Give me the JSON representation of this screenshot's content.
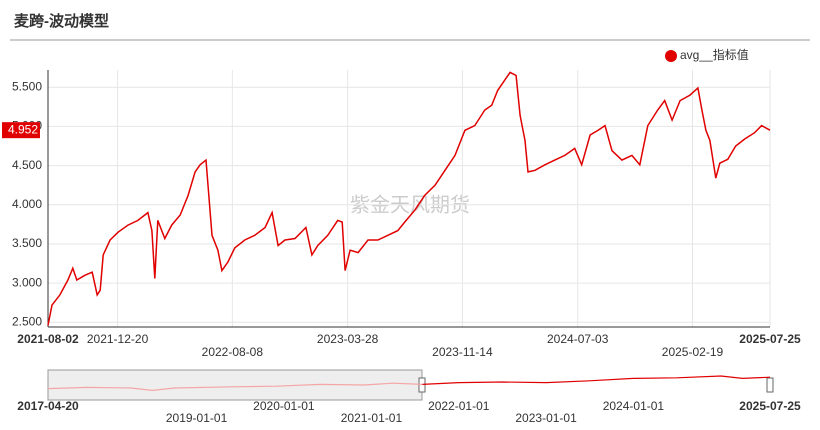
{
  "chart_data": [
    {
      "type": "line",
      "title": "麦跨-波动模型",
      "watermark": "紫金天风期货",
      "legend": "top-right",
      "grid": true,
      "x": [
        "2021-08-02",
        "2021-08-10",
        "2021-08-26",
        "2021-09-11",
        "2021-09-21",
        "2021-09-29",
        "2021-10-15",
        "2021-10-30",
        "2021-11-09",
        "2021-11-15",
        "2021-11-21",
        "2021-12-05",
        "2021-12-21",
        "2022-01-10",
        "2022-01-30",
        "2022-02-19",
        "2022-02-27",
        "2022-03-05",
        "2022-03-11",
        "2022-03-25",
        "2022-04-08",
        "2022-04-25",
        "2022-05-11",
        "2022-05-25",
        "2022-06-04",
        "2022-06-16",
        "2022-06-20",
        "2022-06-28",
        "2022-07-10",
        "2022-07-18",
        "2022-07-30",
        "2022-08-13",
        "2022-09-02",
        "2022-09-22",
        "2022-10-13",
        "2022-10-27",
        "2022-11-08",
        "2022-11-22",
        "2022-12-12",
        "2023-01-03",
        "2023-01-15",
        "2023-01-27",
        "2023-02-16",
        "2023-03-08",
        "2023-03-17",
        "2023-03-23",
        "2023-04-02",
        "2023-04-18",
        "2023-05-08",
        "2023-05-28",
        "2023-06-17",
        "2023-07-07",
        "2023-07-21",
        "2023-08-10",
        "2023-08-30",
        "2023-09-20",
        "2023-10-10",
        "2023-10-30",
        "2023-11-19",
        "2023-12-09",
        "2023-12-29",
        "2024-01-12",
        "2024-01-24",
        "2024-02-07",
        "2024-02-18",
        "2024-03-01",
        "2024-03-09",
        "2024-03-19",
        "2024-03-25",
        "2024-04-08",
        "2024-04-28",
        "2024-05-18",
        "2024-06-07",
        "2024-06-27",
        "2024-07-11",
        "2024-07-28",
        "2024-08-13",
        "2024-08-27",
        "2024-09-10",
        "2024-09-30",
        "2024-10-20",
        "2024-11-05",
        "2024-11-21",
        "2024-12-11",
        "2024-12-25",
        "2025-01-09",
        "2025-01-25",
        "2025-02-14",
        "2025-03-02",
        "2025-03-10",
        "2025-03-18",
        "2025-03-26",
        "2025-04-07",
        "2025-04-15",
        "2025-05-01",
        "2025-05-17",
        "2025-06-04",
        "2025-06-24",
        "2025-07-08",
        "2025-07-25"
      ],
      "series": [
        {
          "name": "avg__指标值",
          "color": "#e00000",
          "values": [
            2.46,
            2.72,
            2.85,
            3.04,
            3.19,
            3.04,
            3.1,
            3.14,
            2.85,
            2.91,
            3.36,
            3.55,
            3.65,
            3.74,
            3.8,
            3.9,
            3.67,
            3.06,
            3.8,
            3.57,
            3.74,
            3.87,
            4.12,
            4.42,
            4.51,
            4.57,
            4.25,
            3.61,
            3.42,
            3.16,
            3.27,
            3.45,
            3.55,
            3.61,
            3.71,
            3.9,
            3.48,
            3.55,
            3.57,
            3.71,
            3.36,
            3.48,
            3.61,
            3.8,
            3.78,
            3.16,
            3.42,
            3.39,
            3.55,
            3.55,
            3.61,
            3.67,
            3.78,
            3.93,
            4.12,
            4.25,
            4.44,
            4.63,
            4.95,
            5.01,
            5.21,
            5.27,
            5.46,
            5.59,
            5.69,
            5.65,
            5.14,
            4.82,
            4.42,
            4.44,
            4.51,
            4.57,
            4.63,
            4.72,
            4.51,
            4.89,
            4.95,
            5.01,
            4.69,
            4.57,
            4.63,
            4.51,
            5.01,
            5.21,
            5.33,
            5.08,
            5.33,
            5.4,
            5.49,
            5.21,
            4.95,
            4.82,
            4.34,
            4.53,
            4.58,
            4.75,
            4.84,
            4.92,
            5.01,
            4.952
          ]
        }
      ],
      "xlim": [
        "2021-08-02",
        "2025-07-25"
      ],
      "xticks": [
        "2021-08-02",
        "2021-12-20",
        "2022-08-08",
        "2023-03-28",
        "2023-11-14",
        "2024-07-03",
        "2025-02-19",
        "2025-07-25"
      ],
      "ylim": [
        2.44,
        5.72
      ],
      "yticks": [
        {
          "value": 2.5,
          "label": "2.500"
        },
        {
          "value": 3,
          "label": "3.000"
        },
        {
          "value": 3.5,
          "label": "3.500"
        },
        {
          "value": 4,
          "label": "4.000"
        },
        {
          "value": 4.5,
          "label": "4.500"
        },
        {
          "value": 5,
          "label": "5.000"
        },
        {
          "value": 5.5,
          "label": "5.500"
        }
      ]
    },
    {
      "type": "line",
      "series": [
        {
          "color": "#f4a6a6",
          "x": [
            "2017-04-20",
            "2017-10-01",
            "2018-04-01",
            "2018-07-01",
            "2018-10-01",
            "2019-06-01",
            "2019-12-01",
            "2020-06-01",
            "2020-12-01",
            "2021-04-01",
            "2021-08-02"
          ],
          "values": [
            2.9,
            3.1,
            3.0,
            2.6,
            3.0,
            3.2,
            3.3,
            3.6,
            3.5,
            3.8,
            3.6
          ]
        },
        {
          "color": "#e00000",
          "x": [
            "2021-08-02",
            "2022-01-01",
            "2022-07-01",
            "2023-01-01",
            "2023-07-01",
            "2024-01-01",
            "2024-07-01",
            "2025-01-01",
            "2025-04-01",
            "2025-07-25"
          ],
          "values": [
            3.6,
            3.9,
            4.0,
            3.9,
            4.2,
            4.6,
            4.7,
            5.0,
            4.6,
            4.8
          ]
        }
      ],
      "xlim": [
        "2017-04-20",
        "2025-07-25"
      ],
      "xticks": [
        "2017-04-20",
        "2019-01-01",
        "2020-01-01",
        "2021-01-01",
        "2022-01-01",
        "2023-01-01",
        "2024-01-01",
        "2025-07-25"
      ],
      "ylim": [
        1,
        6
      ]
    }
  ]
}
